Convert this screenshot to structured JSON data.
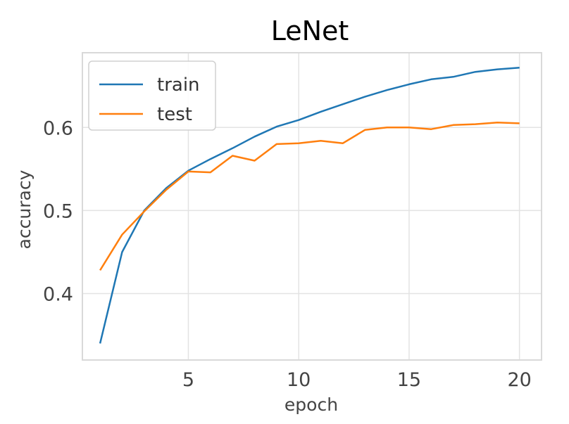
{
  "chart_data": {
    "type": "line",
    "title": "LeNet",
    "xlabel": "epoch",
    "ylabel": "accuracy",
    "xlim": [
      0.2,
      21.0
    ],
    "ylim": [
      0.32,
      0.69
    ],
    "xticks": [
      5,
      10,
      15,
      20
    ],
    "yticks": [
      0.4,
      0.5,
      0.6
    ],
    "xtick_labels": [
      "5",
      "10",
      "15",
      "20"
    ],
    "ytick_labels": [
      "0.4",
      "0.5",
      "0.6"
    ],
    "grid": true,
    "legend": "upper-left",
    "x": [
      1,
      2,
      3,
      4,
      5,
      6,
      7,
      8,
      9,
      10,
      11,
      12,
      13,
      14,
      15,
      16,
      17,
      18,
      19,
      20
    ],
    "series": [
      {
        "name": "train",
        "color": "#1f77b4",
        "values": [
          0.34,
          0.45,
          0.5,
          0.527,
          0.548,
          0.562,
          0.575,
          0.589,
          0.601,
          0.609,
          0.619,
          0.628,
          0.637,
          0.645,
          0.652,
          0.658,
          0.661,
          0.667,
          0.67,
          0.672
        ]
      },
      {
        "name": "test",
        "color": "#ff7f0e",
        "values": [
          0.428,
          0.471,
          0.499,
          0.525,
          0.547,
          0.546,
          0.566,
          0.56,
          0.58,
          0.581,
          0.584,
          0.581,
          0.597,
          0.6,
          0.6,
          0.598,
          0.603,
          0.604,
          0.606,
          0.605
        ]
      }
    ]
  }
}
